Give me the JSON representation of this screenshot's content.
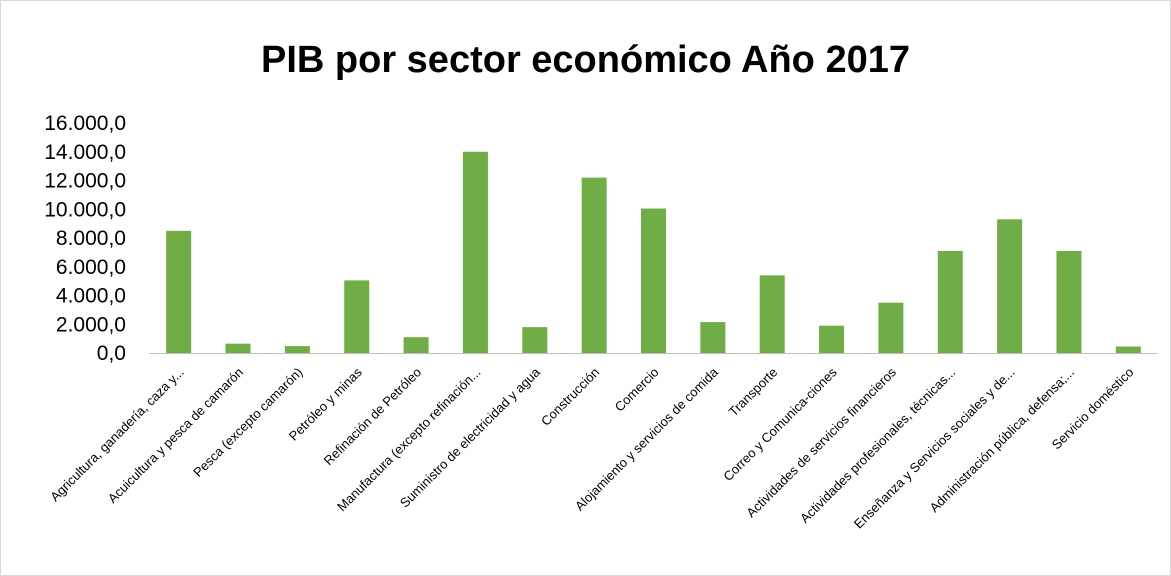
{
  "chart_data": {
    "type": "bar",
    "title": "PIB por sector económico Año 2017",
    "xlabel": "",
    "ylabel": "",
    "ylim": [
      0,
      16000
    ],
    "yticks": [
      0,
      2000,
      4000,
      6000,
      8000,
      10000,
      12000,
      14000,
      16000
    ],
    "ytick_labels": [
      "0,0",
      "2.000,0",
      "4.000,0",
      "6.000,0",
      "8.000,0",
      "10.000,0",
      "12.000,0",
      "14.000,0",
      "16.000,0"
    ],
    "grid": false,
    "legend": "none",
    "bar_color": "#70ad47",
    "categories": [
      "Agricultura, ganadería, caza y...",
      "Acuicultura y pesca de camarón",
      "Pesca (excepto camarón)",
      "Petróleo y minas",
      "Refinación de Petróleo",
      "Manufactura (excepto refinación...",
      "Suministro de electricidad y agua",
      "Construcción",
      "Comercio",
      "Alojamiento y servicios de comida",
      "Transporte",
      "Correo y Comunica-ciones",
      "Actividades de servicios financieros",
      "Actividades profesionales, técnicas...",
      "Enseñanza y Servicios sociales y de...",
      "Administración pública, defensa;...",
      "Servicio doméstico"
    ],
    "values": [
      8500,
      650,
      480,
      5050,
      1100,
      14000,
      1800,
      12200,
      10050,
      2150,
      5400,
      1900,
      3500,
      7100,
      9300,
      7100,
      450
    ]
  }
}
